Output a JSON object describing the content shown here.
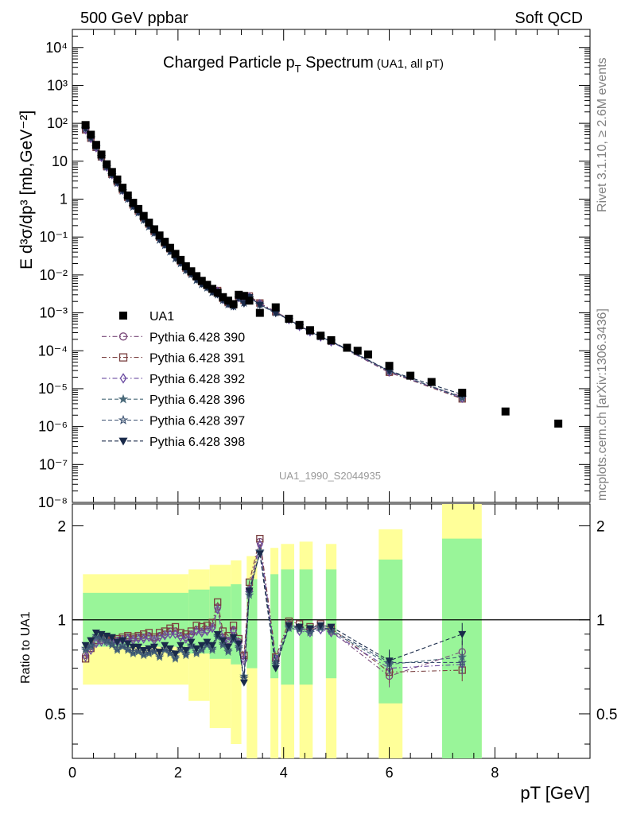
{
  "header": {
    "left": "500 GeV ppbar",
    "right": "Soft QCD"
  },
  "side_labels": {
    "top": "Rivet 3.1.10, ≥ 2.6M events",
    "bottom": "mcplots.cern.ch [arXiv:1306.3436]"
  },
  "watermark": "UA1_1990_S2044935",
  "chart_data": [
    {
      "type": "scatter",
      "title": "Charged Particle p_T Spectrum",
      "subtitle": "(UA1, all p_T)",
      "xlabel": "p_T [GeV]",
      "ylabel": "E d³σ/dp³ [mb,GeV⁻²]",
      "yscale": "log",
      "xlim": [
        0,
        9.8
      ],
      "ylim": [
        1e-08,
        30000
      ],
      "x_ticks": [
        0,
        2,
        4,
        6,
        8
      ],
      "legend_position": "left-center",
      "reference": {
        "name": "UA1",
        "x": [
          0.25,
          0.35,
          0.45,
          0.55,
          0.65,
          0.75,
          0.85,
          0.95,
          1.05,
          1.15,
          1.25,
          1.35,
          1.45,
          1.55,
          1.65,
          1.75,
          1.85,
          1.95,
          2.05,
          2.15,
          2.25,
          2.35,
          2.45,
          2.55,
          2.65,
          2.75,
          2.85,
          2.95,
          3.05,
          3.15,
          3.25,
          3.35,
          3.55,
          3.85,
          4.1,
          4.3,
          4.5,
          4.7,
          4.9,
          5.2,
          5.4,
          5.6,
          6.0,
          6.4,
          6.8,
          7.38,
          8.2,
          9.2
        ],
        "y": [
          90,
          50,
          27,
          15,
          8.3,
          5.2,
          3.3,
          2.0,
          1.25,
          0.8,
          0.55,
          0.36,
          0.24,
          0.16,
          0.11,
          0.075,
          0.052,
          0.036,
          0.025,
          0.017,
          0.0125,
          0.0093,
          0.007,
          0.0055,
          0.0043,
          0.0034,
          0.0026,
          0.0021,
          0.0017,
          0.003,
          0.0028,
          0.0021,
          0.001,
          0.0014,
          0.0007,
          0.00048,
          0.00035,
          0.00025,
          0.00019,
          0.00012,
          0.0001,
          8e-05,
          4e-05,
          2.2e-05,
          1.5e-05,
          7.8e-06,
          2.5e-06,
          1.2e-06
        ]
      },
      "series": [
        {
          "name": "Pythia 6.428 390",
          "marker": "circle-open",
          "color": "#7a4a7a",
          "line": "dash-dot"
        },
        {
          "name": "Pythia 6.428 391",
          "marker": "square-open",
          "color": "#7a4040",
          "line": "dash-dot"
        },
        {
          "name": "Pythia 6.428 392",
          "marker": "diamond-open",
          "color": "#6a4aa0",
          "line": "dash-dot"
        },
        {
          "name": "Pythia 6.428 396",
          "marker": "star-filled",
          "color": "#4a6a7a",
          "line": "dash"
        },
        {
          "name": "Pythia 6.428 397",
          "marker": "star-open",
          "color": "#3a5070",
          "line": "dash"
        },
        {
          "name": "Pythia 6.428 398",
          "marker": "triangle-down-filled",
          "color": "#1a2a4a",
          "line": "dash"
        }
      ]
    },
    {
      "type": "line",
      "ylabel": "Ratio to UA1",
      "xlabel": "p_T [GeV]",
      "ylim": [
        0.36,
        2.35
      ],
      "y_ticks": [
        0.5,
        1,
        2
      ],
      "xlim": [
        0,
        9.8
      ],
      "band_colors": {
        "inner": "#99f599",
        "outer": "#ffff99"
      },
      "x": [
        0.25,
        0.35,
        0.45,
        0.55,
        0.65,
        0.75,
        0.85,
        0.95,
        1.05,
        1.15,
        1.25,
        1.35,
        1.45,
        1.55,
        1.65,
        1.75,
        1.85,
        1.95,
        2.05,
        2.15,
        2.25,
        2.35,
        2.45,
        2.55,
        2.65,
        2.75,
        2.85,
        2.95,
        3.05,
        3.15,
        3.25,
        3.35,
        3.55,
        3.85,
        4.1,
        4.3,
        4.5,
        4.7,
        4.9,
        6.0,
        7.38
      ],
      "bands": [
        {
          "xlo": 0.2,
          "xhi": 2.2,
          "inner": [
            0.82,
            1.22
          ],
          "outer": [
            0.62,
            1.4
          ]
        },
        {
          "xlo": 2.2,
          "xhi": 2.6,
          "inner": [
            0.78,
            1.25
          ],
          "outer": [
            0.55,
            1.45
          ]
        },
        {
          "xlo": 2.6,
          "xhi": 3.0,
          "inner": [
            0.75,
            1.28
          ],
          "outer": [
            0.45,
            1.5
          ]
        },
        {
          "xlo": 3.0,
          "xhi": 3.2,
          "inner": [
            0.72,
            1.3
          ],
          "outer": [
            0.4,
            1.55
          ]
        },
        {
          "xlo": 3.3,
          "xhi": 3.5,
          "inner": [
            0.7,
            1.35
          ],
          "outer": [
            0.36,
            1.6
          ]
        },
        {
          "xlo": 3.75,
          "xhi": 3.9,
          "inner": [
            0.65,
            1.4
          ],
          "outer": [
            0.36,
            1.7
          ]
        },
        {
          "xlo": 3.95,
          "xhi": 4.2,
          "inner": [
            0.62,
            1.45
          ],
          "outer": [
            0.36,
            1.75
          ]
        },
        {
          "xlo": 4.3,
          "xhi": 4.55,
          "inner": [
            0.62,
            1.45
          ],
          "outer": [
            0.36,
            1.78
          ]
        },
        {
          "xlo": 4.8,
          "xhi": 5.0,
          "inner": [
            0.65,
            1.45
          ],
          "outer": [
            0.36,
            1.75
          ]
        },
        {
          "xlo": 5.8,
          "xhi": 6.25,
          "inner": [
            0.54,
            1.56
          ],
          "outer": [
            0.36,
            1.95
          ]
        },
        {
          "xlo": 7.0,
          "xhi": 7.75,
          "inner": [
            0.36,
            1.82
          ],
          "outer": [
            0.36,
            2.35
          ]
        }
      ],
      "series": [
        {
          "name": "Pythia 6.428 390",
          "values": [
            0.77,
            0.82,
            0.85,
            0.86,
            0.86,
            0.86,
            0.86,
            0.87,
            0.88,
            0.87,
            0.88,
            0.88,
            0.89,
            0.87,
            0.89,
            0.9,
            0.92,
            0.92,
            0.89,
            0.88,
            0.9,
            0.93,
            0.92,
            0.93,
            0.95,
            1.1,
            0.88,
            0.86,
            0.93,
            0.85,
            0.75,
            1.25,
            1.78,
            0.74,
            0.97,
            0.94,
            0.93,
            0.95,
            0.92,
            0.66,
            0.79
          ]
        },
        {
          "name": "Pythia 6.428 391",
          "values": [
            0.75,
            0.81,
            0.86,
            0.87,
            0.87,
            0.87,
            0.87,
            0.88,
            0.89,
            0.88,
            0.89,
            0.9,
            0.91,
            0.88,
            0.91,
            0.92,
            0.94,
            0.95,
            0.91,
            0.9,
            0.92,
            0.96,
            0.95,
            0.96,
            0.98,
            1.14,
            0.92,
            0.89,
            0.96,
            0.87,
            0.77,
            1.32,
            1.82,
            0.76,
            0.99,
            0.97,
            0.95,
            0.97,
            0.94,
            0.68,
            0.69
          ]
        },
        {
          "name": "Pythia 6.428 392",
          "values": [
            0.76,
            0.8,
            0.84,
            0.85,
            0.85,
            0.85,
            0.85,
            0.86,
            0.87,
            0.86,
            0.87,
            0.87,
            0.88,
            0.86,
            0.88,
            0.89,
            0.9,
            0.9,
            0.88,
            0.87,
            0.89,
            0.92,
            0.91,
            0.92,
            0.94,
            1.08,
            0.87,
            0.85,
            0.92,
            0.84,
            0.74,
            1.24,
            1.74,
            0.75,
            0.95,
            0.92,
            0.91,
            0.93,
            0.91,
            0.7,
            0.72
          ]
        },
        {
          "name": "Pythia 6.428 396",
          "values": [
            0.8,
            0.82,
            0.88,
            0.87,
            0.85,
            0.83,
            0.8,
            0.82,
            0.8,
            0.78,
            0.79,
            0.77,
            0.78,
            0.79,
            0.76,
            0.8,
            0.78,
            0.75,
            0.8,
            0.77,
            0.82,
            0.78,
            0.8,
            0.83,
            0.8,
            0.88,
            0.83,
            0.79,
            0.86,
            0.81,
            0.66,
            1.2,
            1.65,
            0.72,
            0.94,
            0.93,
            0.91,
            0.94,
            0.92,
            0.72,
            0.76
          ]
        },
        {
          "name": "Pythia 6.428 397",
          "values": [
            0.81,
            0.83,
            0.89,
            0.88,
            0.86,
            0.84,
            0.81,
            0.83,
            0.81,
            0.79,
            0.8,
            0.78,
            0.79,
            0.8,
            0.77,
            0.81,
            0.79,
            0.76,
            0.81,
            0.78,
            0.83,
            0.79,
            0.81,
            0.84,
            0.81,
            0.89,
            0.84,
            0.8,
            0.87,
            0.82,
            0.65,
            1.22,
            1.66,
            0.73,
            0.95,
            0.94,
            0.92,
            0.95,
            0.93,
            0.73,
            0.73
          ]
        },
        {
          "name": "Pythia 6.428 398",
          "values": [
            0.83,
            0.86,
            0.91,
            0.9,
            0.89,
            0.88,
            0.85,
            0.86,
            0.84,
            0.82,
            0.82,
            0.8,
            0.81,
            0.82,
            0.79,
            0.83,
            0.81,
            0.78,
            0.83,
            0.8,
            0.85,
            0.81,
            0.83,
            0.85,
            0.83,
            0.9,
            0.86,
            0.82,
            0.88,
            0.84,
            0.63,
            1.24,
            1.63,
            0.7,
            0.96,
            0.95,
            0.94,
            0.96,
            0.95,
            0.74,
            0.9
          ]
        }
      ]
    }
  ]
}
